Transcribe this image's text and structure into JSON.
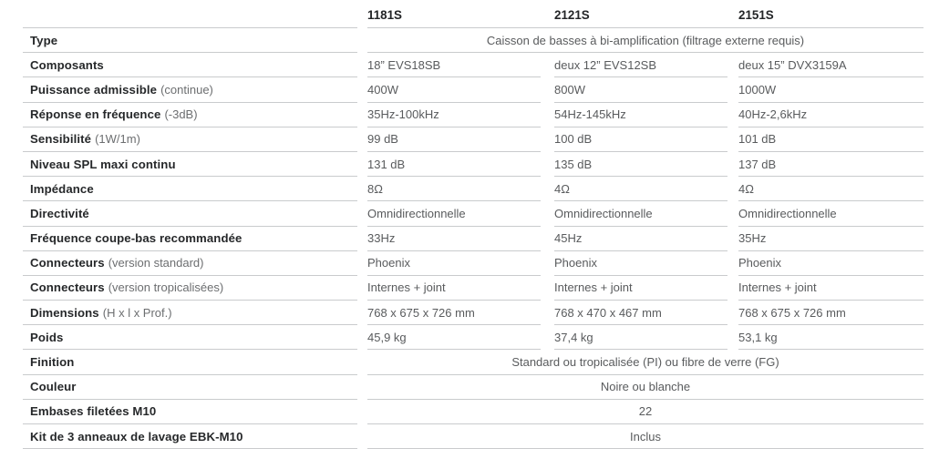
{
  "table": {
    "columns": [
      "1181S",
      "2121S",
      "2151S"
    ],
    "rows": [
      {
        "label": "Type",
        "span": "Caisson de basses à bi-amplification (filtrage externe requis)"
      },
      {
        "label": "Composants",
        "values": [
          "18” EVS18SB",
          "deux 12” EVS12SB",
          "deux 15” DVX3159A"
        ]
      },
      {
        "label": "Puissance admissible",
        "note": "(continue)",
        "values": [
          "400W",
          "800W",
          "1000W"
        ]
      },
      {
        "label": "Réponse en fréquence",
        "note": "(-3dB)",
        "values": [
          "35Hz-100kHz",
          "54Hz-145kHz",
          "40Hz-2,6kHz"
        ]
      },
      {
        "label": "Sensibilité",
        "note": "(1W/1m)",
        "values": [
          "99 dB",
          "100 dB",
          "101 dB"
        ]
      },
      {
        "label": "Niveau SPL maxi continu",
        "values": [
          "131 dB",
          "135 dB",
          "137 dB"
        ]
      },
      {
        "label": "Impédance",
        "values": [
          "8Ω",
          "4Ω",
          "4Ω"
        ]
      },
      {
        "label": "Directivité",
        "values": [
          "Omnidirectionnelle",
          "Omnidirectionnelle",
          "Omnidirectionnelle"
        ]
      },
      {
        "label": "Fréquence coupe-bas recommandée",
        "values": [
          "33Hz",
          "45Hz",
          "35Hz"
        ]
      },
      {
        "label": "Connecteurs",
        "note": "(version standard)",
        "values": [
          "Phoenix",
          "Phoenix",
          "Phoenix"
        ]
      },
      {
        "label": "Connecteurs",
        "note": "(version tropicalisées)",
        "values": [
          "Internes + joint",
          "Internes + joint",
          "Internes + joint"
        ]
      },
      {
        "label": "Dimensions",
        "note": "(H x l x Prof.)",
        "values": [
          "768 x 675 x 726 mm",
          "768 x 470 x 467 mm",
          "768 x 675 x 726 mm"
        ]
      },
      {
        "label": "Poids",
        "values": [
          "45,9 kg",
          "37,4 kg",
          "53,1 kg"
        ]
      },
      {
        "label": "Finition",
        "span": "Standard ou tropicalisée (PI) ou fibre de verre (FG)"
      },
      {
        "label": "Couleur",
        "span": "Noire ou blanche"
      },
      {
        "label": "Embases filetées M10",
        "span": "22"
      },
      {
        "label": "Kit de 3 anneaux de lavage EBK-M10",
        "span": "Inclus"
      }
    ]
  }
}
